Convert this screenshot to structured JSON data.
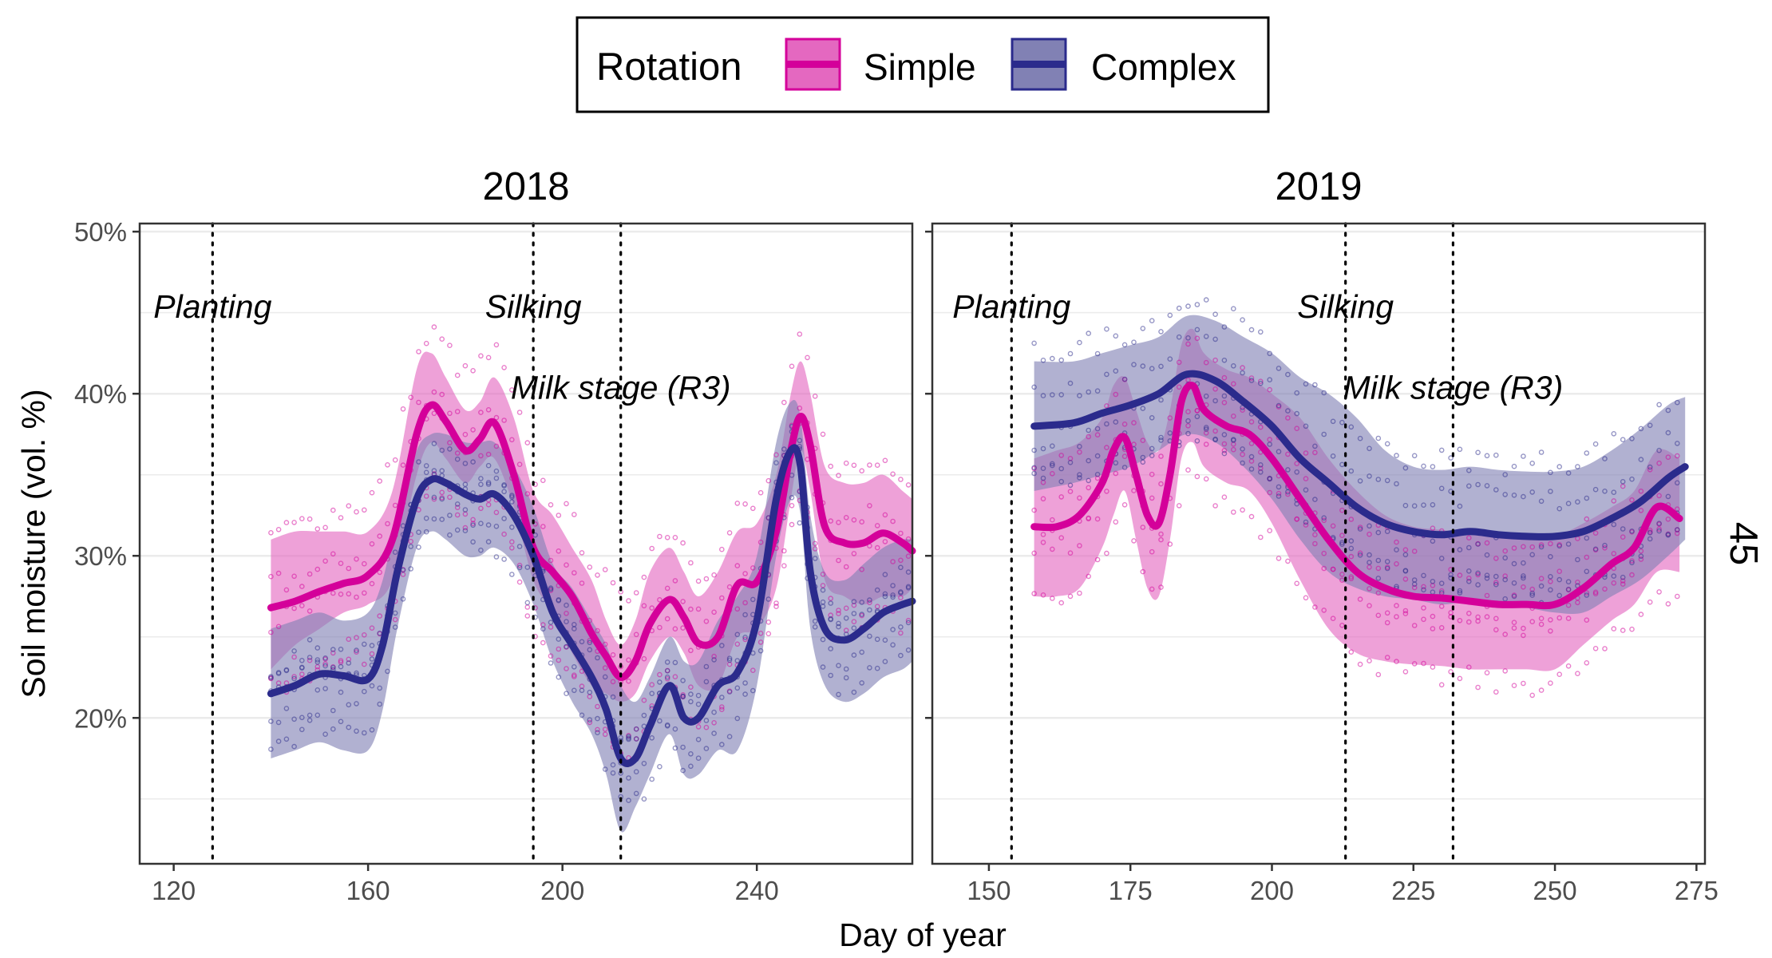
{
  "legend": {
    "title": "Rotation",
    "items": [
      {
        "label": "Simple",
        "color": "#D4009A",
        "fill": "#E468C0"
      },
      {
        "label": "Complex",
        "color": "#2B2B8C",
        "fill": "#8181B4"
      }
    ]
  },
  "ylabel": "Soil moisture (vol. %)",
  "xlabel": "Day of year",
  "strip_right": "45",
  "chart_data": [
    {
      "type": "line",
      "title": "2018",
      "xlim": [
        113,
        272
      ],
      "ylim": [
        11,
        50.5
      ],
      "xticks": [
        120,
        160,
        200,
        240
      ],
      "yticks": [
        20,
        30,
        40,
        50
      ],
      "ytick_labels": [
        "20%",
        "30%",
        "40%",
        "50%"
      ],
      "grid": true,
      "events": [
        {
          "label": "Planting",
          "x": 128,
          "label_y": 44.7
        },
        {
          "label": "Silking",
          "x": 194,
          "label_y": 44.7
        },
        {
          "label": "Milk stage (R3)",
          "x": 212,
          "label_y": 39.7
        }
      ],
      "series": [
        {
          "name": "Simple",
          "x": [
            140,
            145,
            150,
            155,
            160,
            165,
            170,
            173,
            176,
            180,
            183,
            186,
            190,
            194,
            198,
            202,
            206,
            209,
            212,
            215,
            218,
            222,
            225,
            228,
            232,
            236,
            240,
            244,
            247,
            249,
            251,
            254,
            258,
            262,
            266,
            270,
            272
          ],
          "y": [
            26.8,
            27.2,
            27.8,
            28.3,
            28.8,
            31.0,
            37.5,
            39.3,
            38.3,
            36.5,
            37.2,
            38.2,
            35.0,
            30.5,
            29.0,
            27.5,
            25.2,
            23.8,
            22.5,
            23.5,
            25.8,
            27.3,
            26.2,
            24.6,
            25.0,
            28.2,
            28.4,
            31.5,
            36.5,
            38.6,
            36.8,
            31.8,
            30.8,
            30.8,
            31.4,
            30.8,
            30.3
          ],
          "lower": [
            23.0,
            24.5,
            25.5,
            26.5,
            27.0,
            28.5,
            35.0,
            37.0,
            36.0,
            34.5,
            35.5,
            36.0,
            33.0,
            28.5,
            26.5,
            24.0,
            22.0,
            21.5,
            21.0,
            21.5,
            23.5,
            25.0,
            24.0,
            22.0,
            22.0,
            25.0,
            25.5,
            28.0,
            33.5,
            36.5,
            34.0,
            28.5,
            27.5,
            27.0,
            27.5,
            27.5,
            28.0
          ],
          "upper": [
            31.0,
            31.5,
            31.5,
            31.5,
            31.5,
            34.0,
            41.5,
            42.5,
            41.0,
            39.0,
            39.5,
            41.0,
            38.5,
            34.0,
            32.5,
            30.5,
            28.5,
            26.0,
            24.5,
            26.0,
            29.0,
            30.5,
            29.0,
            27.5,
            29.0,
            31.5,
            32.0,
            35.0,
            40.0,
            42.0,
            40.0,
            35.5,
            34.5,
            34.5,
            35.0,
            34.0,
            33.5
          ]
        },
        {
          "name": "Complex",
          "x": [
            140,
            145,
            150,
            155,
            160,
            163,
            166,
            170,
            173,
            176,
            180,
            183,
            186,
            190,
            194,
            198,
            202,
            206,
            209,
            212,
            215,
            218,
            222,
            225,
            228,
            232,
            236,
            240,
            244,
            247,
            249,
            251,
            254,
            258,
            262,
            266,
            270,
            272
          ],
          "y": [
            21.5,
            22.0,
            22.7,
            22.6,
            22.4,
            24.5,
            29.0,
            33.5,
            34.7,
            34.5,
            33.8,
            33.5,
            33.8,
            32.5,
            30.0,
            26.5,
            24.5,
            22.5,
            20.5,
            17.5,
            17.5,
            19.5,
            22.0,
            20.0,
            20.0,
            22.0,
            22.8,
            26.0,
            33.5,
            36.5,
            35.5,
            29.0,
            25.5,
            24.8,
            25.5,
            26.5,
            27.0,
            27.2
          ],
          "lower": [
            17.5,
            18.0,
            18.5,
            18.0,
            18.0,
            20.5,
            25.5,
            30.5,
            31.5,
            31.0,
            30.0,
            30.0,
            30.5,
            29.5,
            27.0,
            23.5,
            21.0,
            19.0,
            16.5,
            13.0,
            14.5,
            16.5,
            19.0,
            16.5,
            16.5,
            18.0,
            18.0,
            22.0,
            30.0,
            33.5,
            32.5,
            25.5,
            22.0,
            21.0,
            21.5,
            22.5,
            23.0,
            23.5
          ],
          "upper": [
            25.5,
            26.0,
            26.5,
            26.0,
            26.5,
            28.5,
            32.5,
            36.5,
            37.5,
            37.5,
            37.0,
            37.0,
            37.0,
            35.5,
            33.0,
            29.5,
            28.0,
            26.0,
            24.5,
            22.0,
            21.0,
            22.5,
            25.0,
            23.5,
            23.5,
            26.0,
            27.5,
            30.0,
            37.0,
            39.5,
            38.5,
            32.5,
            29.0,
            28.5,
            29.5,
            30.5,
            31.0,
            31.0
          ]
        }
      ]
    },
    {
      "type": "line",
      "title": "2019",
      "xlim": [
        140,
        276.5
      ],
      "ylim": [
        11,
        50.5
      ],
      "xticks": [
        150,
        175,
        200,
        225,
        250,
        275
      ],
      "yticks": [
        20,
        30,
        40,
        50
      ],
      "grid": true,
      "events": [
        {
          "label": "Planting",
          "x": 154,
          "label_y": 44.7
        },
        {
          "label": "Silking",
          "x": 213,
          "label_y": 44.7
        },
        {
          "label": "Milk stage (R3)",
          "x": 232,
          "label_y": 39.7
        }
      ],
      "series": [
        {
          "name": "Simple",
          "x": [
            158,
            162,
            166,
            170,
            172,
            174,
            176,
            178,
            180,
            182,
            184,
            186,
            188,
            192,
            196,
            200,
            205,
            210,
            215,
            220,
            225,
            230,
            235,
            240,
            245,
            250,
            255,
            260,
            264,
            268,
            272
          ],
          "y": [
            31.8,
            31.8,
            32.5,
            34.5,
            36.5,
            37.3,
            35.0,
            32.5,
            32.0,
            35.0,
            39.5,
            40.5,
            39.0,
            38.0,
            37.5,
            36.0,
            33.5,
            31.0,
            29.0,
            28.0,
            27.5,
            27.4,
            27.2,
            27.0,
            27.0,
            27.0,
            28.0,
            29.5,
            30.5,
            33.0,
            32.3
          ],
          "lower": [
            27.5,
            27.5,
            28.0,
            30.5,
            32.5,
            34.0,
            31.0,
            28.0,
            27.5,
            31.0,
            36.0,
            37.0,
            35.5,
            34.5,
            34.0,
            32.0,
            28.5,
            25.5,
            24.0,
            23.5,
            23.3,
            23.2,
            23.0,
            23.0,
            23.0,
            23.0,
            24.5,
            26.0,
            27.0,
            29.0,
            29.0
          ],
          "upper": [
            36.0,
            36.5,
            37.0,
            38.5,
            40.5,
            41.0,
            39.0,
            37.0,
            36.5,
            39.0,
            43.0,
            44.0,
            42.5,
            41.5,
            41.0,
            40.0,
            38.5,
            36.0,
            34.0,
            32.5,
            31.8,
            31.6,
            31.4,
            31.2,
            31.2,
            31.2,
            32.0,
            33.0,
            34.0,
            36.5,
            36.0
          ]
        },
        {
          "name": "Complex",
          "x": [
            158,
            165,
            170,
            175,
            180,
            185,
            190,
            195,
            200,
            205,
            210,
            215,
            220,
            225,
            230,
            235,
            240,
            245,
            250,
            255,
            260,
            265,
            270,
            273
          ],
          "y": [
            38.0,
            38.2,
            38.8,
            39.3,
            40.0,
            41.2,
            40.8,
            39.5,
            38.0,
            36.0,
            34.5,
            33.0,
            32.0,
            31.5,
            31.3,
            31.5,
            31.3,
            31.2,
            31.2,
            31.5,
            32.3,
            33.3,
            34.8,
            35.5
          ],
          "lower": [
            34.0,
            34.5,
            35.0,
            35.5,
            36.5,
            37.5,
            37.0,
            35.5,
            33.5,
            31.0,
            29.0,
            28.0,
            27.5,
            27.3,
            27.0,
            27.2,
            27.0,
            26.8,
            26.5,
            26.5,
            27.5,
            28.5,
            30.0,
            31.0
          ],
          "upper": [
            42.0,
            42.0,
            42.5,
            43.0,
            43.5,
            44.8,
            44.5,
            43.5,
            42.5,
            41.0,
            40.0,
            38.5,
            36.5,
            35.5,
            35.3,
            35.5,
            35.3,
            35.2,
            35.2,
            35.5,
            36.5,
            37.8,
            39.3,
            39.8
          ]
        }
      ]
    }
  ]
}
